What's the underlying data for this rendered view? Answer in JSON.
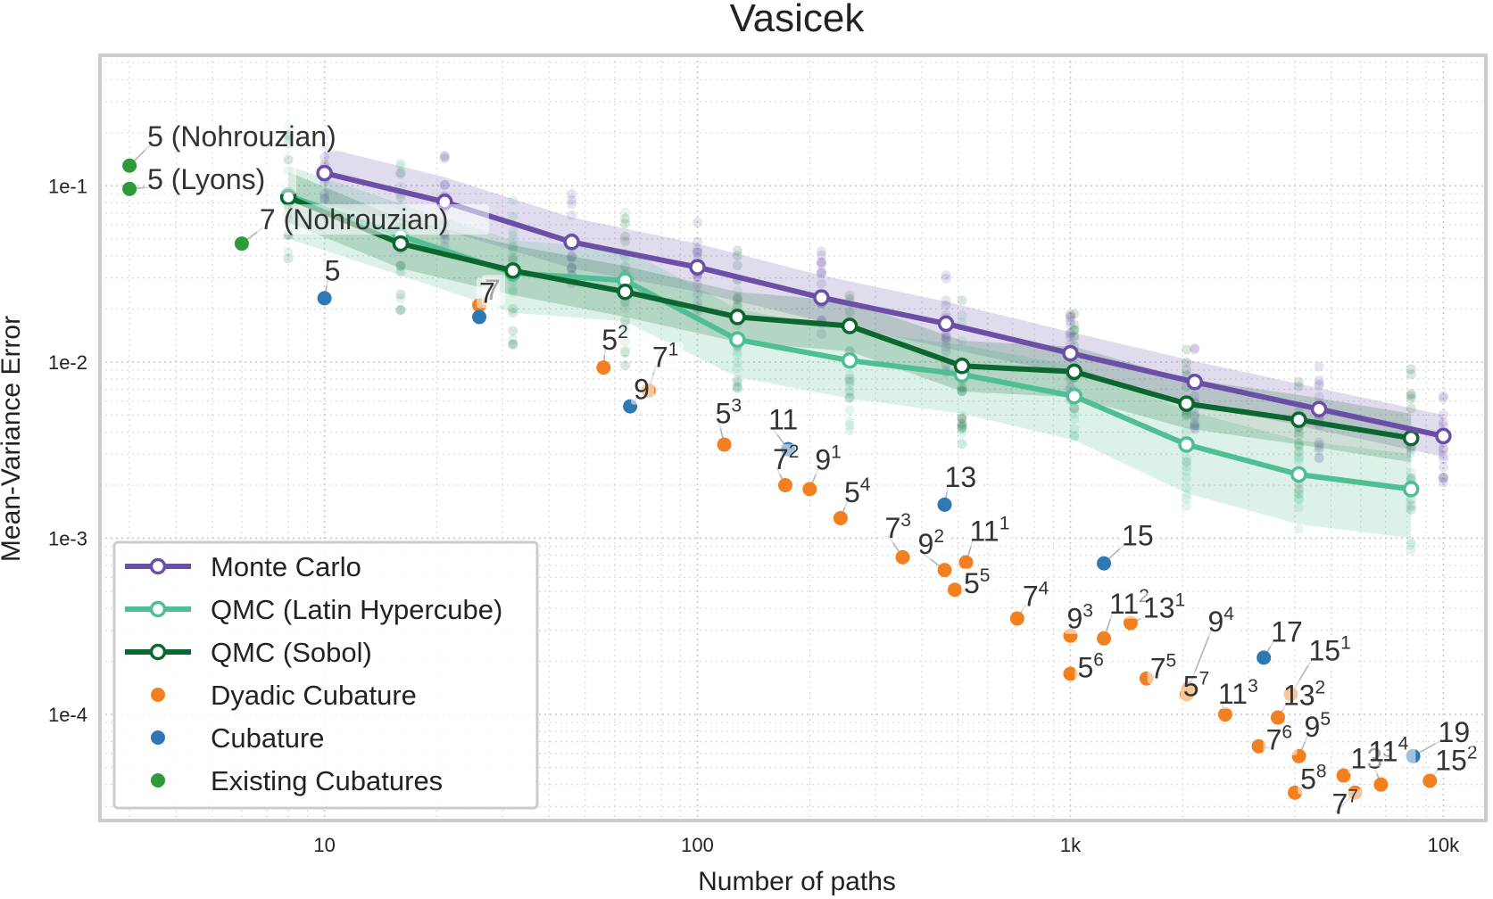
{
  "chart_data": {
    "type": "line",
    "title": "Vasicek",
    "xlabel": "Number of paths",
    "ylabel": "Mean-Variance Error",
    "xscale": "log",
    "yscale": "log",
    "xlim": [
      2.5,
      13000
    ],
    "ylim": [
      2.5e-05,
      0.55
    ],
    "xticks": [
      {
        "value": 10,
        "label": "10"
      },
      {
        "value": 100,
        "label": "100"
      },
      {
        "value": 1000,
        "label": "1k"
      },
      {
        "value": 10000,
        "label": "10k"
      }
    ],
    "yticks": [
      {
        "value": 0.1,
        "label": "1e-1"
      },
      {
        "value": 0.01,
        "label": "1e-2"
      },
      {
        "value": 0.001,
        "label": "1e-3"
      },
      {
        "value": 0.0001,
        "label": "1e-4"
      }
    ],
    "grid": true,
    "legend_position": "bottom-left",
    "series": [
      {
        "name": "Monte Carlo",
        "color": "#6b4ea6",
        "x": [
          10,
          21,
          46,
          100,
          215,
          464,
          1000,
          2154,
          4642,
          10000
        ],
        "y": [
          0.118,
          0.081,
          0.048,
          0.0345,
          0.0232,
          0.0165,
          0.0112,
          0.0077,
          0.0054,
          0.0038
        ],
        "band_low": [
          0.078,
          0.056,
          0.034,
          0.025,
          0.017,
          0.012,
          0.0085,
          0.0059,
          0.0041,
          0.0029
        ],
        "band_high": [
          0.165,
          0.112,
          0.066,
          0.047,
          0.031,
          0.022,
          0.0148,
          0.0101,
          0.0071,
          0.005
        ]
      },
      {
        "name": "QMC (Latin Hypercube)",
        "color": "#4fbf93",
        "x": [
          8,
          16,
          32,
          64,
          128,
          256,
          512,
          1024,
          2048,
          4096,
          8192
        ],
        "y": [
          0.088,
          0.052,
          0.032,
          0.029,
          0.0134,
          0.0102,
          0.0085,
          0.0064,
          0.0034,
          0.0023,
          0.0019
        ],
        "band_low": [
          0.05,
          0.031,
          0.019,
          0.017,
          0.0082,
          0.0062,
          0.0051,
          0.0036,
          0.0018,
          0.0012,
          0.001
        ],
        "band_high": [
          0.13,
          0.079,
          0.049,
          0.044,
          0.02,
          0.015,
          0.0125,
          0.0095,
          0.0053,
          0.0036,
          0.003
        ]
      },
      {
        "name": "QMC (Sobol)",
        "color": "#0b6630",
        "x": [
          8,
          16,
          32,
          64,
          128,
          256,
          512,
          1024,
          2048,
          4096,
          8192
        ],
        "y": [
          0.086,
          0.047,
          0.033,
          0.025,
          0.018,
          0.016,
          0.0095,
          0.0088,
          0.0058,
          0.0047,
          0.0037
        ],
        "band_low": [
          0.062,
          0.034,
          0.024,
          0.018,
          0.013,
          0.0115,
          0.0068,
          0.0063,
          0.0042,
          0.0034,
          0.0027
        ],
        "band_high": [
          0.12,
          0.065,
          0.046,
          0.035,
          0.025,
          0.022,
          0.0132,
          0.0122,
          0.008,
          0.0065,
          0.0051
        ]
      }
    ],
    "scatter_groups": [
      {
        "name": "Dyadic Cubature",
        "color": "#f28021",
        "points": [
          {
            "x": 26,
            "y": 0.021,
            "label": "7"
          },
          {
            "x": 56,
            "y": 0.0093,
            "label": "5",
            "sup": "2"
          },
          {
            "x": 74,
            "y": 0.0069,
            "label": "7",
            "sup": "1"
          },
          {
            "x": 118,
            "y": 0.0034,
            "label": "5",
            "sup": "3"
          },
          {
            "x": 172,
            "y": 0.002,
            "label": "7",
            "sup": "2"
          },
          {
            "x": 200,
            "y": 0.0019,
            "label": "9",
            "sup": "1"
          },
          {
            "x": 242,
            "y": 0.0013,
            "label": "5",
            "sup": "4"
          },
          {
            "x": 355,
            "y": 0.00078,
            "label": "7",
            "sup": "3"
          },
          {
            "x": 460,
            "y": 0.00066,
            "label": "9",
            "sup": "2"
          },
          {
            "x": 525,
            "y": 0.00073,
            "label": "11",
            "sup": "1"
          },
          {
            "x": 490,
            "y": 0.00051,
            "label": "5",
            "sup": "5"
          },
          {
            "x": 720,
            "y": 0.00035,
            "label": "7",
            "sup": "4"
          },
          {
            "x": 1000,
            "y": 0.00028,
            "label": "9",
            "sup": "3"
          },
          {
            "x": 1230,
            "y": 0.00027,
            "label": "11",
            "sup": "2"
          },
          {
            "x": 1450,
            "y": 0.00033,
            "label": "13",
            "sup": "1"
          },
          {
            "x": 1000,
            "y": 0.00017,
            "label": "5",
            "sup": "6"
          },
          {
            "x": 1600,
            "y": 0.00016,
            "label": "7",
            "sup": "5"
          },
          {
            "x": 2070,
            "y": 0.00014,
            "label": "9",
            "sup": "4"
          },
          {
            "x": 2050,
            "y": 0.00013,
            "label": "5",
            "sup": "7"
          },
          {
            "x": 2600,
            "y": 0.0001,
            "label": "11",
            "sup": "3"
          },
          {
            "x": 3200,
            "y": 6.6e-05,
            "label": "7",
            "sup": "6"
          },
          {
            "x": 3600,
            "y": 9.6e-05,
            "label": "13",
            "sup": "2"
          },
          {
            "x": 3900,
            "y": 0.00013,
            "label": "15",
            "sup": "1"
          },
          {
            "x": 4100,
            "y": 5.8e-05,
            "label": "9",
            "sup": "5"
          },
          {
            "x": 4000,
            "y": 3.6e-05,
            "label": "5",
            "sup": "8"
          },
          {
            "x": 5400,
            "y": 4.5e-05,
            "label": "13",
            "sup": "3"
          },
          {
            "x": 5800,
            "y": 3.6e-05,
            "label": "7",
            "sup": "7"
          },
          {
            "x": 6800,
            "y": 4e-05,
            "label": "11",
            "sup": "4"
          },
          {
            "x": 9200,
            "y": 4.2e-05,
            "label": "15",
            "sup": "2"
          }
        ]
      },
      {
        "name": "Cubature",
        "color": "#2e78b5",
        "points": [
          {
            "x": 10,
            "y": 0.023,
            "label": "5"
          },
          {
            "x": 26,
            "y": 0.018,
            "label": "7"
          },
          {
            "x": 66,
            "y": 0.0056,
            "label": "9"
          },
          {
            "x": 175,
            "y": 0.0032,
            "label": "11"
          },
          {
            "x": 460,
            "y": 0.00155,
            "label": "13"
          },
          {
            "x": 1230,
            "y": 0.00072,
            "label": "15"
          },
          {
            "x": 3300,
            "y": 0.00021,
            "label": "17"
          },
          {
            "x": 8300,
            "y": 5.8e-05,
            "label": "19"
          }
        ]
      },
      {
        "name": "Existing Cubatures",
        "color": "#2e9b3a",
        "points": [
          {
            "x": 3,
            "y": 0.13,
            "label": "5 (Nohrouzian)"
          },
          {
            "x": 3,
            "y": 0.096,
            "label": "5 (Lyons)"
          },
          {
            "x": 6,
            "y": 0.047,
            "label": "7 (Nohrouzian)"
          }
        ]
      }
    ]
  }
}
